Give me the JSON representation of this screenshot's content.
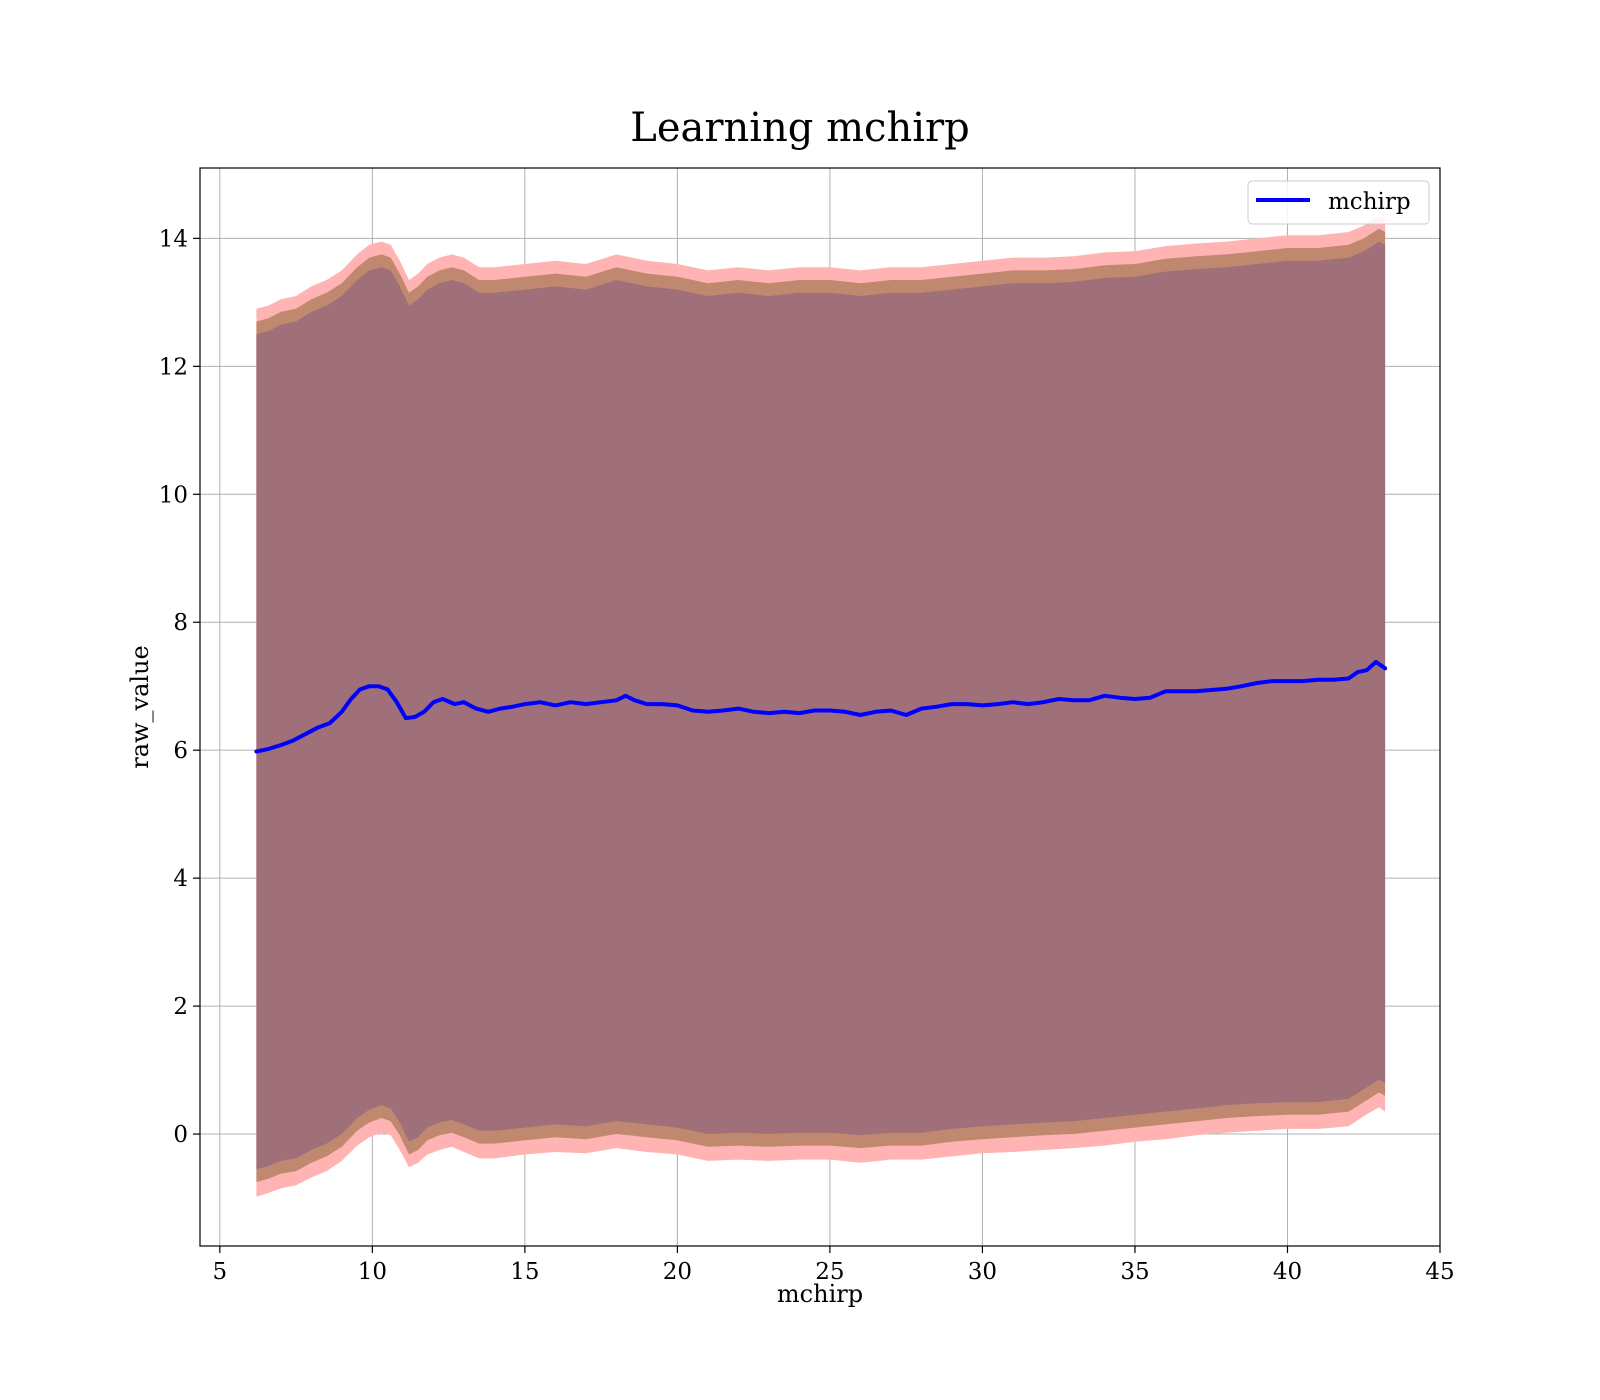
{
  "chart_data": {
    "type": "area",
    "title": "Learning mchirp",
    "xlabel": "mchirp",
    "ylabel": "raw_value",
    "xlim": [
      4.35,
      45
    ],
    "ylim": [
      -1.75,
      15.1
    ],
    "xticks": [
      5,
      10,
      15,
      20,
      25,
      30,
      35,
      40,
      45
    ],
    "yticks": [
      0,
      2,
      4,
      6,
      8,
      10,
      12,
      14
    ],
    "grid": true,
    "legend": {
      "position": "top-right",
      "entries": [
        "mchirp"
      ]
    },
    "colors": {
      "line": "#0000ff",
      "outer_band": "#ffb3b3",
      "middle_band": "#c0896f",
      "inner_band": "#a0707a",
      "grid": "#b0b0b0"
    },
    "series": [
      {
        "name": "mchirp",
        "x": [
          6.2,
          6.6,
          7.0,
          7.4,
          7.8,
          8.2,
          8.6,
          9.0,
          9.3,
          9.6,
          9.9,
          10.2,
          10.5,
          10.8,
          11.1,
          11.4,
          11.7,
          12.0,
          12.3,
          12.7,
          13.0,
          13.4,
          13.8,
          14.2,
          14.6,
          15.0,
          15.5,
          16.0,
          16.5,
          17.0,
          17.5,
          18.0,
          18.3,
          18.6,
          19.0,
          19.5,
          20.0,
          20.5,
          21.0,
          21.5,
          22.0,
          22.5,
          23.0,
          23.5,
          24.0,
          24.5,
          25.0,
          25.5,
          26.0,
          26.5,
          27.0,
          27.5,
          28.0,
          28.5,
          29.0,
          29.5,
          30.0,
          30.5,
          31.0,
          31.5,
          32.0,
          32.5,
          33.0,
          33.5,
          34.0,
          34.5,
          35.0,
          35.5,
          36.0,
          36.5,
          37.0,
          37.5,
          38.0,
          38.5,
          39.0,
          39.5,
          40.0,
          40.5,
          41.0,
          41.5,
          42.0,
          42.3,
          42.6,
          42.9,
          43.2
        ],
        "values": [
          5.98,
          6.02,
          6.08,
          6.15,
          6.25,
          6.35,
          6.42,
          6.6,
          6.8,
          6.95,
          7.0,
          7.0,
          6.95,
          6.75,
          6.5,
          6.52,
          6.6,
          6.75,
          6.8,
          6.72,
          6.75,
          6.65,
          6.6,
          6.65,
          6.68,
          6.72,
          6.75,
          6.7,
          6.75,
          6.72,
          6.75,
          6.78,
          6.85,
          6.78,
          6.72,
          6.72,
          6.7,
          6.62,
          6.6,
          6.62,
          6.65,
          6.6,
          6.58,
          6.6,
          6.58,
          6.62,
          6.62,
          6.6,
          6.55,
          6.6,
          6.62,
          6.55,
          6.65,
          6.68,
          6.72,
          6.72,
          6.7,
          6.72,
          6.75,
          6.72,
          6.75,
          6.8,
          6.78,
          6.78,
          6.85,
          6.82,
          6.8,
          6.82,
          6.92,
          6.92,
          6.92,
          6.94,
          6.96,
          7.0,
          7.05,
          7.08,
          7.08,
          7.08,
          7.1,
          7.1,
          7.12,
          7.22,
          7.25,
          7.38,
          7.28
        ]
      }
    ],
    "bands": [
      {
        "x": [
          6.2,
          6.6,
          7.0,
          7.5,
          8.0,
          8.5,
          9.0,
          9.5,
          9.9,
          10.3,
          10.6,
          10.9,
          11.2,
          11.5,
          11.8,
          12.2,
          12.6,
          13.0,
          13.5,
          14.0,
          15.0,
          16.0,
          17.0,
          18.0,
          19.0,
          20.0,
          21.0,
          22.0,
          23.0,
          24.0,
          25.0,
          26.0,
          27.0,
          28.0,
          29.0,
          30.0,
          31.0,
          32.0,
          33.0,
          34.0,
          35.0,
          36.0,
          37.0,
          38.0,
          39.0,
          40.0,
          41.0,
          42.0,
          42.5,
          43.0,
          43.2
        ],
        "upper": [
          12.9,
          12.95,
          13.05,
          13.1,
          13.25,
          13.35,
          13.5,
          13.75,
          13.9,
          13.95,
          13.9,
          13.65,
          13.35,
          13.45,
          13.6,
          13.7,
          13.75,
          13.7,
          13.55,
          13.55,
          13.6,
          13.65,
          13.6,
          13.75,
          13.65,
          13.6,
          13.5,
          13.55,
          13.5,
          13.55,
          13.55,
          13.5,
          13.55,
          13.55,
          13.6,
          13.65,
          13.7,
          13.7,
          13.72,
          13.78,
          13.8,
          13.88,
          13.92,
          13.95,
          14.0,
          14.05,
          14.05,
          14.1,
          14.2,
          14.35,
          14.3
        ],
        "middle_upper": [
          12.7,
          12.75,
          12.85,
          12.9,
          13.05,
          13.15,
          13.3,
          13.55,
          13.7,
          13.75,
          13.7,
          13.45,
          13.15,
          13.25,
          13.4,
          13.5,
          13.55,
          13.5,
          13.35,
          13.35,
          13.4,
          13.45,
          13.4,
          13.55,
          13.45,
          13.4,
          13.3,
          13.35,
          13.3,
          13.35,
          13.35,
          13.3,
          13.35,
          13.35,
          13.4,
          13.45,
          13.5,
          13.5,
          13.52,
          13.58,
          13.6,
          13.68,
          13.72,
          13.75,
          13.8,
          13.85,
          13.85,
          13.9,
          14.0,
          14.15,
          14.1
        ],
        "inner_upper": [
          12.5,
          12.55,
          12.65,
          12.7,
          12.85,
          12.95,
          13.1,
          13.35,
          13.5,
          13.55,
          13.5,
          13.25,
          12.95,
          13.05,
          13.2,
          13.3,
          13.35,
          13.3,
          13.15,
          13.15,
          13.2,
          13.25,
          13.2,
          13.35,
          13.25,
          13.2,
          13.1,
          13.15,
          13.1,
          13.15,
          13.15,
          13.1,
          13.15,
          13.15,
          13.2,
          13.25,
          13.3,
          13.3,
          13.32,
          13.38,
          13.4,
          13.48,
          13.52,
          13.55,
          13.6,
          13.65,
          13.65,
          13.7,
          13.8,
          13.95,
          13.9
        ],
        "inner_lower": [
          -0.55,
          -0.5,
          -0.42,
          -0.38,
          -0.25,
          -0.15,
          0.0,
          0.25,
          0.38,
          0.45,
          0.4,
          0.18,
          -0.12,
          -0.05,
          0.1,
          0.18,
          0.22,
          0.15,
          0.05,
          0.05,
          0.1,
          0.15,
          0.12,
          0.2,
          0.15,
          0.1,
          0.0,
          0.02,
          0.0,
          0.02,
          0.02,
          -0.02,
          0.02,
          0.02,
          0.08,
          0.12,
          0.15,
          0.18,
          0.2,
          0.25,
          0.3,
          0.35,
          0.4,
          0.45,
          0.48,
          0.5,
          0.5,
          0.55,
          0.7,
          0.85,
          0.8
        ],
        "middle_lower": [
          -0.75,
          -0.7,
          -0.62,
          -0.58,
          -0.45,
          -0.35,
          -0.2,
          0.05,
          0.18,
          0.25,
          0.2,
          -0.02,
          -0.32,
          -0.25,
          -0.1,
          -0.02,
          0.02,
          -0.05,
          -0.15,
          -0.15,
          -0.1,
          -0.05,
          -0.08,
          0.0,
          -0.05,
          -0.1,
          -0.2,
          -0.18,
          -0.2,
          -0.18,
          -0.18,
          -0.22,
          -0.18,
          -0.18,
          -0.12,
          -0.08,
          -0.05,
          -0.02,
          0.0,
          0.05,
          0.1,
          0.15,
          0.2,
          0.25,
          0.28,
          0.3,
          0.3,
          0.35,
          0.5,
          0.65,
          0.6
        ],
        "lower": [
          -0.98,
          -0.92,
          -0.85,
          -0.8,
          -0.68,
          -0.58,
          -0.42,
          -0.18,
          -0.05,
          0.02,
          -0.02,
          -0.25,
          -0.52,
          -0.45,
          -0.32,
          -0.25,
          -0.2,
          -0.28,
          -0.38,
          -0.38,
          -0.32,
          -0.28,
          -0.3,
          -0.22,
          -0.28,
          -0.32,
          -0.42,
          -0.4,
          -0.42,
          -0.4,
          -0.4,
          -0.45,
          -0.4,
          -0.4,
          -0.35,
          -0.3,
          -0.28,
          -0.25,
          -0.22,
          -0.18,
          -0.12,
          -0.08,
          -0.02,
          0.02,
          0.05,
          0.08,
          0.08,
          0.12,
          0.28,
          0.42,
          0.35
        ]
      }
    ]
  }
}
